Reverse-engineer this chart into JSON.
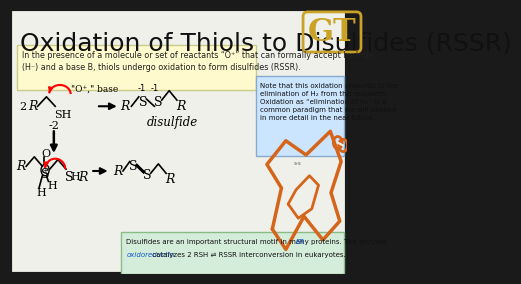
{
  "title": "Oxidation of Thiols to Disulfides (RSSR)",
  "title_fontsize": 18,
  "title_color": "#111111",
  "bg_color": "#ffffff",
  "border_color": "#1a1a1a",
  "yellow_box_color": "#fffacd",
  "yellow_box_text": "In the presence of a molecule or set of reactants “O⁺” that can formally accept hydride\n(H⁻) and a base B, thiols undergo oxidation to form disulfides (RSSR).",
  "blue_box_color": "#cce5ff",
  "blue_box_text": "Note that this oxidation amounts to the\nelimination of H₂ from the reactants.\nOxidation as “elimination of H₂” is a\ncommon paradigm that we will explore\nin more detail in the near future.",
  "green_box_color": "#d4edda",
  "green_box_text": "Disulfides are an important structural motif in many proteins. The enzyme ER\noxidoreductin catalyzes 2 RSH ⇌ RSSR interconversion in eukaryotes.",
  "gt_logo_color": "#c9a227",
  "overall_bg": "#1a1a1a",
  "slide_bg": "#f0f0eb"
}
